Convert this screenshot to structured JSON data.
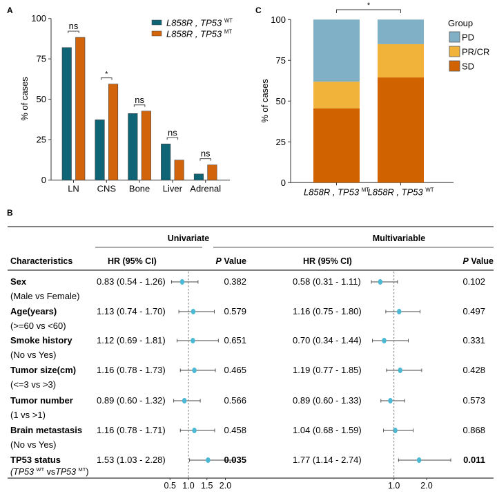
{
  "panels": {
    "A": "A",
    "B": "B",
    "C": "C"
  },
  "chart_data": [
    {
      "id": "A",
      "type": "bar",
      "title": "",
      "xlabel": "",
      "ylabel": "% of cases",
      "ylim": [
        0,
        100
      ],
      "yticks": [
        "0",
        "25",
        "50",
        "75",
        "100"
      ],
      "yticks_values": [
        0,
        25,
        50,
        75,
        100
      ],
      "categories": [
        "LN",
        "CNS",
        "Bone",
        "Liver",
        "Adrenal"
      ],
      "series": [
        {
          "name_main": "L858R , TP53",
          "name_sup": "WT",
          "color": "#0f6475",
          "values": [
            82.0,
            37.3,
            41.2,
            22.4,
            3.8
          ]
        },
        {
          "name_main": "L858R , TP53",
          "name_sup": "MT",
          "color": "#d2650b",
          "values": [
            88.3,
            59.4,
            42.7,
            12.4,
            9.4
          ]
        }
      ],
      "significance": [
        "ns",
        "*",
        "ns",
        "ns",
        "ns"
      ],
      "legend_position": "top-right",
      "grid": false
    },
    {
      "id": "C",
      "type": "bar",
      "stacked": true,
      "title": "",
      "xlabel": "",
      "ylabel": "% of cases",
      "ylim": [
        0,
        100
      ],
      "yticks": [
        "0",
        "25",
        "50",
        "75",
        "100"
      ],
      "yticks_values": [
        0,
        25,
        50,
        75,
        100
      ],
      "categories": [
        {
          "main": "L858R , TP53",
          "sup": "MT"
        },
        {
          "main": "L858R , TP53",
          "sup": "WT"
        }
      ],
      "series": [
        {
          "name": "SD",
          "color": "#d06200",
          "values": [
            45.5,
            64.5
          ]
        },
        {
          "name": "PR/CR",
          "color": "#f2b33a",
          "values": [
            16.4,
            20.4
          ]
        },
        {
          "name": "PD",
          "color": "#7fb0c6",
          "values": [
            38.1,
            15.1
          ]
        }
      ],
      "legend_title": "Group",
      "legend_order": [
        "PD",
        "PR/CR",
        "SD"
      ],
      "significance": "*",
      "legend_position": "right",
      "grid": false
    },
    {
      "id": "B",
      "type": "table",
      "header": {
        "characteristics": "Characteristics",
        "univariate": "Univariate",
        "multivariable": "Multivariable",
        "hr": "HR (95% CI)",
        "p_italic": "P",
        "p_rest": " Value"
      },
      "rows": [
        {
          "name": "Sex",
          "sub": "(Male vs Female)",
          "uni": {
            "text": "0.83 (0.54 - 1.26)",
            "hr": 0.83,
            "lo": 0.54,
            "hi": 1.26,
            "p": "0.382",
            "bold": false
          },
          "multi": {
            "text": "0.58 (0.31 - 1.11)",
            "hr": 0.58,
            "lo": 0.31,
            "hi": 1.11,
            "p": "0.102",
            "bold": false
          }
        },
        {
          "name": "Age(years)",
          "sub": "(>=60 vs <60)",
          "uni": {
            "text": "1.13 (0.74 - 1.70)",
            "hr": 1.13,
            "lo": 0.74,
            "hi": 1.7,
            "p": "0.579",
            "bold": false
          },
          "multi": {
            "text": "1.16 (0.75 - 1.80)",
            "hr": 1.16,
            "lo": 0.75,
            "hi": 1.8,
            "p": "0.497",
            "bold": false
          }
        },
        {
          "name": "Smoke history",
          "sub": "(No vs Yes)",
          "uni": {
            "text": "1.12 (0.69 - 1.81)",
            "hr": 1.12,
            "lo": 0.69,
            "hi": 1.81,
            "p": "0.651",
            "bold": false
          },
          "multi": {
            "text": "0.70 (0.34 - 1.44)",
            "hr": 0.7,
            "lo": 0.34,
            "hi": 1.44,
            "p": "0.331",
            "bold": false
          }
        },
        {
          "name": "Tumor size(cm)",
          "sub": "(<=3 vs >3)",
          "uni": {
            "text": "1.16 (0.78 - 1.73)",
            "hr": 1.16,
            "lo": 0.78,
            "hi": 1.73,
            "p": "0.465",
            "bold": false
          },
          "multi": {
            "text": "1.19 (0.77 - 1.85)",
            "hr": 1.19,
            "lo": 0.77,
            "hi": 1.85,
            "p": "0.428",
            "bold": false
          }
        },
        {
          "name": "Tumor number",
          "sub": "(1 vs >1)",
          "uni": {
            "text": "0.89 (0.60 - 1.32)",
            "hr": 0.89,
            "lo": 0.6,
            "hi": 1.32,
            "p": "0.566",
            "bold": false
          },
          "multi": {
            "text": "0.89 (0.60 - 1.33)",
            "hr": 0.89,
            "lo": 0.6,
            "hi": 1.33,
            "p": "0.573",
            "bold": false
          }
        },
        {
          "name": "Brain metastasis",
          "sub": "(No vs Yes)",
          "uni": {
            "text": "1.16 (0.78 - 1.71)",
            "hr": 1.16,
            "lo": 0.78,
            "hi": 1.71,
            "p": "0.458",
            "bold": false
          },
          "multi": {
            "text": "1.04 (0.68 - 1.59)",
            "hr": 1.04,
            "lo": 0.68,
            "hi": 1.59,
            "p": "0.868",
            "bold": false
          }
        },
        {
          "name": "TP53 status",
          "sub_parts": [
            "(",
            "TP53",
            "WT",
            " vs",
            "TP53",
            "MT",
            ")"
          ],
          "uni": {
            "text": "1.53 (1.03 - 2.28)",
            "hr": 1.53,
            "lo": 1.03,
            "hi": 2.28,
            "p": "0.035",
            "bold": true
          },
          "multi": {
            "text": "1.77 (1.14 - 2.74)",
            "hr": 1.77,
            "lo": 1.14,
            "hi": 2.74,
            "p": "0.011",
            "bold": true
          }
        }
      ],
      "uni_axis_ticks": [
        "0.5",
        "1.0",
        "1.5",
        "2.0"
      ],
      "uni_axis_values": [
        0.5,
        1.0,
        1.5,
        2.0
      ],
      "multi_axis_ticks": [
        "1.0",
        "2.0"
      ],
      "multi_axis_values": [
        1.0,
        2.0
      ],
      "reference_line": 1.0,
      "point_color": "#4bb8d4"
    }
  ]
}
